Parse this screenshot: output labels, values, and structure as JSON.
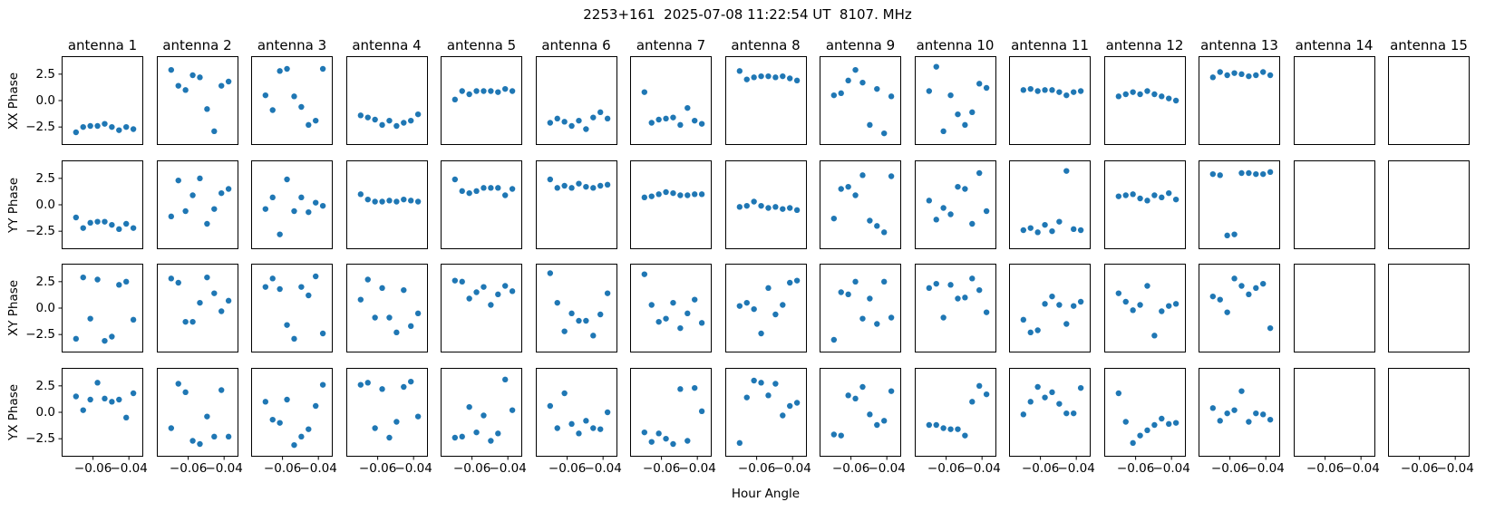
{
  "title": "2253+161  2025-07-08 11:22:54 UT  8107. MHz",
  "chart_data": {
    "type": "scatter",
    "grid_rows": 4,
    "grid_cols": 15,
    "row_labels": [
      "XX Phase",
      "YY Phase",
      "XY Phase",
      "YX Phase"
    ],
    "col_titles": [
      "antenna 1",
      "antenna 2",
      "antenna 3",
      "antenna 4",
      "antenna 5",
      "antenna 6",
      "antenna 7",
      "antenna 8",
      "antenna 9",
      "antenna 10",
      "antenna 11",
      "antenna 12",
      "antenna 13",
      "antenna 14",
      "antenna 15"
    ],
    "xlabel": "Hour Angle",
    "xlim": [
      -0.0775,
      -0.032
    ],
    "ylim": [
      -4.2,
      4.2
    ],
    "xticks": [
      -0.06,
      -0.04
    ],
    "xtick_labels": [
      "−0.06",
      "−0.04"
    ],
    "yticks": [
      2.5,
      0.0,
      -2.5
    ],
    "ytick_labels": [
      "2.5",
      "0.0",
      "−2.5"
    ],
    "marker_color": "#1f77b4",
    "grid_lines": false,
    "legend": false,
    "x": [
      -0.0695,
      -0.0655,
      -0.0615,
      -0.0575,
      -0.0535,
      -0.0495,
      -0.0455,
      -0.0415,
      -0.0375
    ],
    "series": [
      {
        "name": "XX Phase",
        "antennas": [
          [
            -3.0,
            -2.5,
            -2.4,
            -2.4,
            -2.2,
            -2.5,
            -2.8,
            -2.5,
            -2.7
          ],
          [
            2.9,
            1.4,
            1.0,
            2.4,
            2.2,
            -0.8,
            -2.9,
            1.4,
            1.8
          ],
          [
            0.5,
            -0.9,
            2.8,
            3.0,
            0.4,
            -0.6,
            -2.3,
            -1.9,
            3.0
          ],
          [
            -1.4,
            -1.6,
            -1.8,
            -2.3,
            -1.9,
            -2.4,
            -2.1,
            -1.9,
            -1.3
          ],
          [
            0.1,
            0.9,
            0.6,
            0.9,
            0.9,
            0.9,
            0.8,
            1.1,
            0.9
          ],
          [
            -2.1,
            -1.7,
            -2.0,
            -2.4,
            -1.9,
            -2.7,
            -1.6,
            -1.1,
            -1.7
          ],
          [
            0.8,
            -2.1,
            -1.8,
            -1.7,
            -1.6,
            -2.3,
            -0.7,
            -1.9,
            -2.2
          ],
          [
            2.8,
            2.0,
            2.2,
            2.3,
            2.3,
            2.2,
            2.3,
            2.1,
            1.9
          ],
          [
            0.5,
            0.7,
            1.9,
            2.9,
            1.7,
            -2.3,
            1.1,
            -3.1,
            0.4
          ],
          [
            0.9,
            3.2,
            -2.9,
            0.5,
            -1.3,
            -2.3,
            -1.1,
            1.6,
            1.2
          ],
          [
            1.0,
            1.1,
            0.9,
            1.0,
            1.0,
            0.8,
            0.5,
            0.8,
            0.9
          ],
          [
            0.4,
            0.6,
            0.8,
            0.6,
            0.9,
            0.6,
            0.4,
            0.2,
            0.0
          ],
          [
            2.2,
            2.7,
            2.4,
            2.6,
            2.5,
            2.3,
            2.4,
            2.7,
            2.4
          ],
          [],
          []
        ]
      },
      {
        "name": "YY Phase",
        "antennas": [
          [
            -1.2,
            -2.2,
            -1.7,
            -1.6,
            -1.6,
            -1.9,
            -2.3,
            -1.8,
            -2.2
          ],
          [
            -1.1,
            2.3,
            -0.6,
            0.9,
            2.5,
            -1.8,
            -0.4,
            1.1,
            1.5
          ],
          [
            -0.4,
            0.7,
            -2.8,
            2.4,
            -0.6,
            0.7,
            -0.7,
            0.2,
            -0.1
          ],
          [
            1.0,
            0.5,
            0.3,
            0.3,
            0.4,
            0.3,
            0.5,
            0.4,
            0.3
          ],
          [
            2.4,
            1.3,
            1.1,
            1.3,
            1.6,
            1.6,
            1.6,
            0.9,
            1.5
          ],
          [
            2.4,
            1.6,
            1.8,
            1.6,
            2.0,
            1.7,
            1.6,
            1.8,
            1.9
          ],
          [
            0.7,
            0.8,
            1.0,
            1.2,
            1.1,
            0.9,
            0.9,
            1.0,
            1.0
          ],
          [
            -0.2,
            -0.1,
            0.3,
            -0.1,
            -0.3,
            -0.2,
            -0.4,
            -0.3,
            -0.5
          ],
          [
            -1.3,
            1.5,
            1.7,
            0.9,
            2.8,
            -1.5,
            -2.0,
            -2.6,
            2.7
          ],
          [
            0.4,
            -1.4,
            -0.3,
            -0.9,
            1.7,
            1.5,
            -1.8,
            3.0,
            -0.6
          ],
          [
            -2.4,
            -2.2,
            -2.6,
            -1.9,
            -2.5,
            -1.6,
            3.2,
            -2.3,
            -2.4
          ],
          [
            0.8,
            0.9,
            1.0,
            0.6,
            0.4,
            0.9,
            0.7,
            1.1,
            0.5
          ],
          [
            2.9,
            2.8,
            -2.9,
            -2.8,
            3.0,
            3.0,
            2.9,
            2.9,
            3.1
          ],
          [],
          []
        ]
      },
      {
        "name": "XY Phase",
        "antennas": [
          [
            -2.9,
            2.9,
            -1.0,
            2.7,
            -3.1,
            -2.7,
            2.2,
            2.5,
            -1.1
          ],
          [
            2.8,
            2.4,
            -1.3,
            -1.3,
            0.5,
            2.9,
            1.4,
            -0.3,
            0.7
          ],
          [
            2.0,
            2.8,
            1.8,
            -1.6,
            -2.9,
            2.0,
            1.2,
            3.0,
            -2.4
          ],
          [
            0.8,
            2.7,
            -0.9,
            1.9,
            -0.9,
            -2.3,
            1.7,
            -1.7,
            -0.5
          ],
          [
            2.6,
            2.5,
            0.9,
            1.5,
            2.0,
            0.3,
            1.3,
            2.1,
            1.6
          ],
          [
            3.3,
            0.5,
            -2.2,
            -0.5,
            -1.2,
            -1.2,
            -2.6,
            -0.6,
            1.4
          ],
          [
            3.2,
            0.3,
            -1.3,
            -1.0,
            0.5,
            -1.9,
            -0.5,
            0.8,
            -1.4
          ],
          [
            0.2,
            0.5,
            -0.1,
            -2.4,
            1.9,
            -0.6,
            0.3,
            2.4,
            2.6
          ],
          [
            -3.0,
            1.5,
            1.3,
            2.5,
            -1.0,
            0.9,
            -1.5,
            2.5,
            -0.9
          ],
          [
            1.9,
            2.3,
            -0.9,
            2.2,
            0.9,
            1.0,
            2.8,
            1.7,
            -0.4
          ],
          [
            -1.1,
            -2.3,
            -2.1,
            0.4,
            1.1,
            0.3,
            -1.5,
            0.2,
            0.6
          ],
          [
            1.4,
            0.6,
            -0.2,
            0.3,
            2.1,
            -2.6,
            -0.3,
            0.2,
            0.4
          ],
          [
            1.1,
            0.8,
            -0.4,
            2.8,
            2.1,
            1.3,
            1.9,
            2.3,
            -1.9
          ],
          [],
          []
        ]
      },
      {
        "name": "YX Phase",
        "antennas": [
          [
            1.5,
            0.2,
            1.2,
            2.8,
            1.3,
            1.0,
            1.2,
            -0.5,
            1.8
          ],
          [
            -1.5,
            2.7,
            1.9,
            -2.7,
            -3.0,
            -0.4,
            -2.3,
            2.1,
            -2.3
          ],
          [
            1.0,
            -0.7,
            -1.0,
            1.2,
            -3.1,
            -2.3,
            -1.6,
            0.6,
            2.6
          ],
          [
            2.6,
            2.8,
            -1.5,
            2.2,
            -2.4,
            -0.9,
            2.4,
            2.9,
            -0.4
          ],
          [
            -2.4,
            -2.3,
            0.5,
            -1.9,
            -0.3,
            -2.7,
            -2.0,
            3.1,
            0.2
          ],
          [
            0.6,
            -1.5,
            1.8,
            -1.1,
            -2.0,
            -0.8,
            -1.5,
            -1.6,
            0.0
          ],
          [
            -1.9,
            -2.8,
            -2.0,
            -2.5,
            -3.0,
            2.2,
            -2.7,
            2.3,
            0.1
          ],
          [
            -2.9,
            1.4,
            3.0,
            2.8,
            1.6,
            2.7,
            -0.3,
            0.6,
            0.9
          ],
          [
            -2.1,
            -2.2,
            1.6,
            1.3,
            2.4,
            -0.2,
            -1.2,
            -0.8,
            2.0
          ],
          [
            -1.2,
            -1.2,
            -1.5,
            -1.6,
            -1.6,
            -2.2,
            1.0,
            2.5,
            1.7
          ],
          [
            -0.2,
            1.0,
            2.4,
            1.4,
            1.9,
            0.8,
            -0.1,
            -0.1,
            2.3
          ],
          [
            1.8,
            -0.9,
            -2.9,
            -2.2,
            -1.7,
            -1.2,
            -0.6,
            -1.1,
            -1.0
          ],
          [
            0.4,
            -0.8,
            -0.1,
            0.2,
            2.0,
            -0.9,
            -0.1,
            -0.2,
            -0.7
          ],
          [],
          []
        ]
      }
    ]
  }
}
